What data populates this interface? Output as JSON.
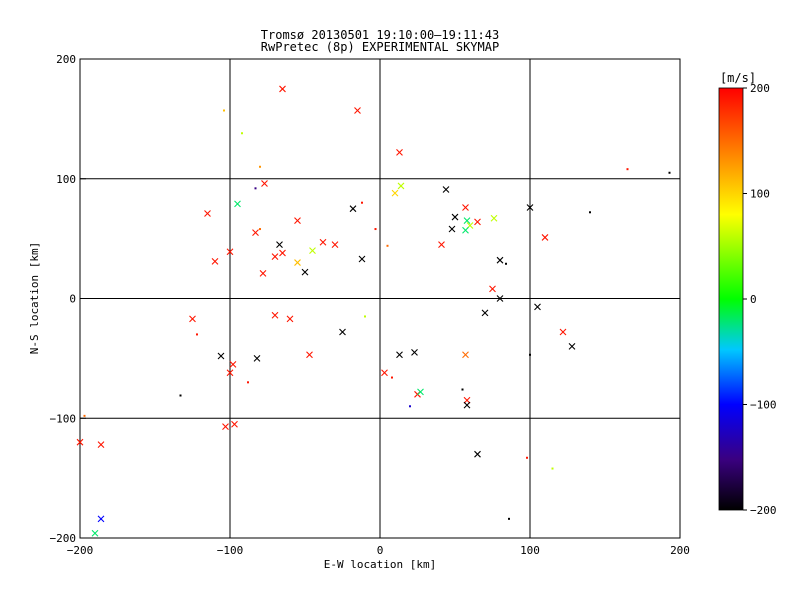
{
  "chart_data": {
    "type": "scatter",
    "title": "Tromsø 20130501 19:10:00–19:11:43",
    "subtitle": "RwPretec (8p) EXPERIMENTAL SKYMAP",
    "xlabel": "E-W location [km]",
    "ylabel": "N-S location [km]",
    "xlim": [
      -200,
      200
    ],
    "ylim": [
      -200,
      200
    ],
    "xticks": [
      -200,
      -100,
      0,
      100,
      200
    ],
    "yticks": [
      -200,
      -100,
      0,
      100,
      200
    ],
    "xtick_labels": [
      "−200",
      "−100",
      "0",
      "100",
      "200"
    ],
    "ytick_labels": [
      "−200",
      "−100",
      "0",
      "100",
      "200"
    ],
    "grid": true,
    "marker_styles": [
      "x",
      "."
    ],
    "colorbar": {
      "title": "[m/s]",
      "range": [
        -200,
        200
      ],
      "ticks": [
        200,
        100,
        0,
        -100,
        -200
      ],
      "tick_labels": [
        "200",
        "100",
        "0",
        "−100",
        "−200"
      ],
      "colormap": [
        "#000000",
        "#3a0080",
        "#0000ff",
        "#00c8ff",
        "#00ff00",
        "#ffff00",
        "#ff8000",
        "#ff0000"
      ]
    },
    "points": [
      {
        "x": -65,
        "y": 175,
        "v": 190,
        "m": "x"
      },
      {
        "x": -15,
        "y": 157,
        "v": 190,
        "m": "x"
      },
      {
        "x": 13,
        "y": 122,
        "v": 190,
        "m": "x"
      },
      {
        "x": -104,
        "y": 157,
        "v": 110,
        "m": "."
      },
      {
        "x": -92,
        "y": 138,
        "v": 60,
        "m": "."
      },
      {
        "x": -80,
        "y": 110,
        "v": 130,
        "m": "."
      },
      {
        "x": -77,
        "y": 96,
        "v": 190,
        "m": "x"
      },
      {
        "x": -83,
        "y": 92,
        "v": -150,
        "m": "."
      },
      {
        "x": -95,
        "y": 79,
        "v": -20,
        "m": "x"
      },
      {
        "x": -115,
        "y": 71,
        "v": 190,
        "m": "x"
      },
      {
        "x": -110,
        "y": 31,
        "v": 190,
        "m": "x"
      },
      {
        "x": -100,
        "y": 39,
        "v": 190,
        "m": "x"
      },
      {
        "x": -83,
        "y": 55,
        "v": 190,
        "m": "x"
      },
      {
        "x": -80,
        "y": 58,
        "v": 150,
        "m": "."
      },
      {
        "x": -55,
        "y": 65,
        "v": 190,
        "m": "x"
      },
      {
        "x": -67,
        "y": 45,
        "v": -200,
        "m": "x"
      },
      {
        "x": -65,
        "y": 38,
        "v": 190,
        "m": "x"
      },
      {
        "x": -70,
        "y": 35,
        "v": 190,
        "m": "x"
      },
      {
        "x": -78,
        "y": 21,
        "v": 190,
        "m": "x"
      },
      {
        "x": -55,
        "y": 30,
        "v": 110,
        "m": "x"
      },
      {
        "x": -50,
        "y": 22,
        "v": -200,
        "m": "x"
      },
      {
        "x": -45,
        "y": 40,
        "v": 60,
        "m": "x"
      },
      {
        "x": -38,
        "y": 47,
        "v": 190,
        "m": "x"
      },
      {
        "x": -30,
        "y": 45,
        "v": 190,
        "m": "x"
      },
      {
        "x": -18,
        "y": 75,
        "v": -200,
        "m": "x"
      },
      {
        "x": -12,
        "y": 80,
        "v": 190,
        "m": "."
      },
      {
        "x": 10,
        "y": 88,
        "v": 100,
        "m": "x"
      },
      {
        "x": 14,
        "y": 94,
        "v": 60,
        "m": "x"
      },
      {
        "x": 44,
        "y": 91,
        "v": -200,
        "m": "x"
      },
      {
        "x": -12,
        "y": 33,
        "v": -200,
        "m": "x"
      },
      {
        "x": -3,
        "y": 58,
        "v": 190,
        "m": "."
      },
      {
        "x": 5,
        "y": 44,
        "v": 150,
        "m": "."
      },
      {
        "x": 50,
        "y": 68,
        "v": -200,
        "m": "x"
      },
      {
        "x": 57,
        "y": 76,
        "v": 190,
        "m": "x"
      },
      {
        "x": 58,
        "y": 65,
        "v": -20,
        "m": "x"
      },
      {
        "x": 60,
        "y": 61,
        "v": 60,
        "m": "x"
      },
      {
        "x": 57,
        "y": 57,
        "v": -20,
        "m": "x"
      },
      {
        "x": 65,
        "y": 64,
        "v": 190,
        "m": "x"
      },
      {
        "x": 76,
        "y": 67,
        "v": 60,
        "m": "x"
      },
      {
        "x": 100,
        "y": 76,
        "v": -200,
        "m": "x"
      },
      {
        "x": 110,
        "y": 51,
        "v": 190,
        "m": "x"
      },
      {
        "x": 140,
        "y": 72,
        "v": -200,
        "m": "."
      },
      {
        "x": 165,
        "y": 108,
        "v": 190,
        "m": "."
      },
      {
        "x": 193,
        "y": 105,
        "v": -200,
        "m": "."
      },
      {
        "x": 80,
        "y": 32,
        "v": -200,
        "m": "x"
      },
      {
        "x": 84,
        "y": 29,
        "v": -200,
        "m": "."
      },
      {
        "x": 41,
        "y": 45,
        "v": 190,
        "m": "x"
      },
      {
        "x": 48,
        "y": 58,
        "v": -200,
        "m": "x"
      },
      {
        "x": -125,
        "y": -17,
        "v": 190,
        "m": "x"
      },
      {
        "x": -122,
        "y": -30,
        "v": 190,
        "m": "."
      },
      {
        "x": -106,
        "y": -48,
        "v": -200,
        "m": "x"
      },
      {
        "x": -100,
        "y": -62,
        "v": 190,
        "m": "x"
      },
      {
        "x": -98,
        "y": -55,
        "v": 190,
        "m": "x"
      },
      {
        "x": -88,
        "y": -70,
        "v": 190,
        "m": "."
      },
      {
        "x": -82,
        "y": -50,
        "v": -200,
        "m": "x"
      },
      {
        "x": -70,
        "y": -14,
        "v": 190,
        "m": "x"
      },
      {
        "x": -60,
        "y": -17,
        "v": 190,
        "m": "x"
      },
      {
        "x": -47,
        "y": -47,
        "v": 190,
        "m": "x"
      },
      {
        "x": -133,
        "y": -81,
        "v": -200,
        "m": "."
      },
      {
        "x": -103,
        "y": -107,
        "v": 190,
        "m": "x"
      },
      {
        "x": -97,
        "y": -105,
        "v": 190,
        "m": "x"
      },
      {
        "x": -200,
        "y": -120,
        "v": 190,
        "m": "x"
      },
      {
        "x": -186,
        "y": -122,
        "v": 190,
        "m": "x"
      },
      {
        "x": -186,
        "y": -184,
        "v": -100,
        "m": "x"
      },
      {
        "x": -190,
        "y": -196,
        "v": -20,
        "m": "x"
      },
      {
        "x": -197,
        "y": -98,
        "v": 150,
        "m": "."
      },
      {
        "x": 3,
        "y": -62,
        "v": 190,
        "m": "x"
      },
      {
        "x": 8,
        "y": -66,
        "v": 190,
        "m": "."
      },
      {
        "x": 13,
        "y": -47,
        "v": -200,
        "m": "x"
      },
      {
        "x": 23,
        "y": -45,
        "v": -200,
        "m": "x"
      },
      {
        "x": 25,
        "y": -80,
        "v": 190,
        "m": "x"
      },
      {
        "x": 27,
        "y": -78,
        "v": -20,
        "m": "x"
      },
      {
        "x": 20,
        "y": -90,
        "v": -120,
        "m": "."
      },
      {
        "x": 58,
        "y": -85,
        "v": 190,
        "m": "x"
      },
      {
        "x": 58,
        "y": -89,
        "v": -200,
        "m": "x"
      },
      {
        "x": 55,
        "y": -76,
        "v": -200,
        "m": "."
      },
      {
        "x": 57,
        "y": -47,
        "v": 150,
        "m": "x"
      },
      {
        "x": 65,
        "y": -130,
        "v": -200,
        "m": "x"
      },
      {
        "x": 86,
        "y": -184,
        "v": -200,
        "m": "."
      },
      {
        "x": 100,
        "y": -47,
        "v": -200,
        "m": "."
      },
      {
        "x": 105,
        "y": -7,
        "v": -200,
        "m": "x"
      },
      {
        "x": 122,
        "y": -28,
        "v": 190,
        "m": "x"
      },
      {
        "x": 128,
        "y": -40,
        "v": -200,
        "m": "x"
      },
      {
        "x": 115,
        "y": -142,
        "v": 60,
        "m": "."
      },
      {
        "x": 98,
        "y": -133,
        "v": 190,
        "m": "."
      },
      {
        "x": 80,
        "y": 0,
        "v": -200,
        "m": "x"
      },
      {
        "x": 70,
        "y": -12,
        "v": -200,
        "m": "x"
      },
      {
        "x": 75,
        "y": 8,
        "v": 190,
        "m": "x"
      },
      {
        "x": -25,
        "y": -28,
        "v": -200,
        "m": "x"
      },
      {
        "x": -10,
        "y": -15,
        "v": 60,
        "m": "."
      }
    ]
  }
}
